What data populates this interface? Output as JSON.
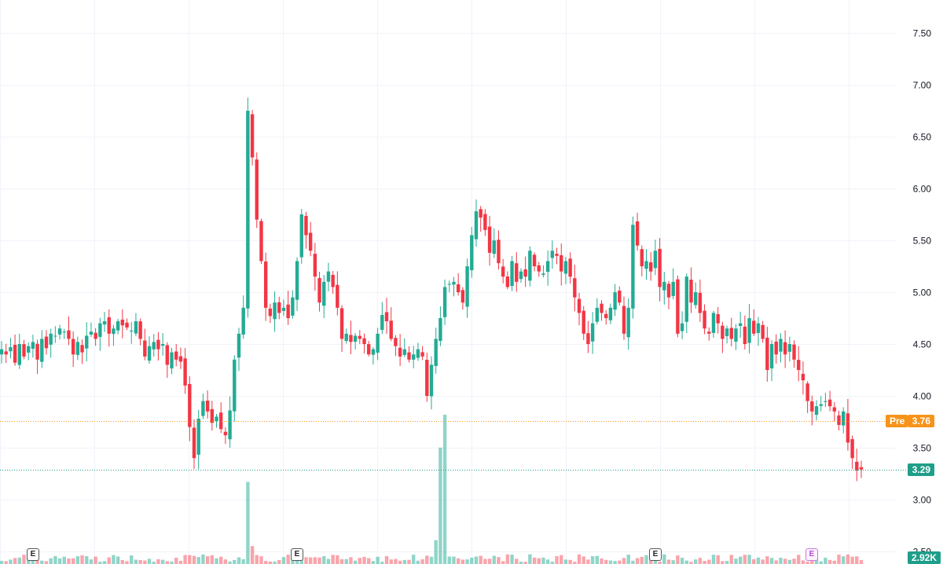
{
  "chart_data": {
    "type": "candlestick",
    "y_ticks": [
      "7.50",
      "7.00",
      "6.50",
      "6.00",
      "5.50",
      "5.00",
      "4.50",
      "4.00",
      "3.50",
      "3.00",
      "2.50"
    ],
    "ylim": [
      2.5,
      7.7
    ],
    "grid": true,
    "pre_market": {
      "label": "Pre",
      "price": "3.76",
      "value": 3.76
    },
    "last_price": {
      "price": "3.29",
      "value": 3.29
    },
    "volume_label": "2.92K",
    "earnings_markers": [
      {
        "label": "E",
        "bar": 7,
        "upcoming": false
      },
      {
        "label": "E",
        "bar": 66,
        "upcoming": false
      },
      {
        "label": "E",
        "bar": 146,
        "upcoming": false
      },
      {
        "label": "E",
        "bar": 181,
        "upcoming": true
      }
    ],
    "closes": [
      4.45,
      4.4,
      4.47,
      4.32,
      4.5,
      4.38,
      4.48,
      4.52,
      4.35,
      4.55,
      4.46,
      4.6,
      4.58,
      4.65,
      4.62,
      4.55,
      4.4,
      4.52,
      4.42,
      4.58,
      4.62,
      4.55,
      4.7,
      4.72,
      4.6,
      4.65,
      4.72,
      4.68,
      4.66,
      4.63,
      4.72,
      4.55,
      4.38,
      4.48,
      4.52,
      4.45,
      4.5,
      4.3,
      4.42,
      4.35,
      4.33,
      4.1,
      3.7,
      3.4,
      3.78,
      3.95,
      3.85,
      3.74,
      3.8,
      3.68,
      3.62,
      3.86,
      4.35,
      4.6,
      4.85,
      6.75,
      6.3,
      5.7,
      5.3,
      4.85,
      4.77,
      4.9,
      4.8,
      4.85,
      4.75,
      4.95,
      5.3,
      5.75,
      5.55,
      5.4,
      5.15,
      4.9,
      5.1,
      5.2,
      5.05,
      4.85,
      4.55,
      4.6,
      4.52,
      4.58,
      4.55,
      4.5,
      4.4,
      4.45,
      4.6,
      4.78,
      4.72,
      4.55,
      4.48,
      4.38,
      4.45,
      4.35,
      4.4,
      4.45,
      4.38,
      4.0,
      4.3,
      4.55,
      4.75,
      5.05,
      5.08,
      5.1,
      5.0,
      4.9,
      5.25,
      5.55,
      5.78,
      5.72,
      5.6,
      5.38,
      5.5,
      5.28,
      5.15,
      5.05,
      5.3,
      5.1,
      5.2,
      5.15,
      5.4,
      5.25,
      5.2,
      5.18,
      5.3,
      5.4,
      5.35,
      5.2,
      5.3,
      5.15,
      4.95,
      4.8,
      4.6,
      4.5,
      4.7,
      4.85,
      4.8,
      4.75,
      4.85,
      5.0,
      4.9,
      4.6,
      4.85,
      5.65,
      5.45,
      5.25,
      5.3,
      5.2,
      5.4,
      5.05,
      5.1,
      4.95,
      5.1,
      4.6,
      4.7,
      5.15,
      4.9,
      5.0,
      4.8,
      4.65,
      4.6,
      4.8,
      4.7,
      4.55,
      4.65,
      4.55,
      4.65,
      4.7,
      4.5,
      4.75,
      4.6,
      4.7,
      4.55,
      4.25,
      4.5,
      4.4,
      4.55,
      4.4,
      4.5,
      4.35,
      4.25,
      4.15,
      3.95,
      3.85,
      3.9,
      3.92,
      3.95,
      3.9,
      3.85,
      3.72,
      3.85,
      3.55,
      3.4,
      3.28,
      3.29
    ]
  }
}
